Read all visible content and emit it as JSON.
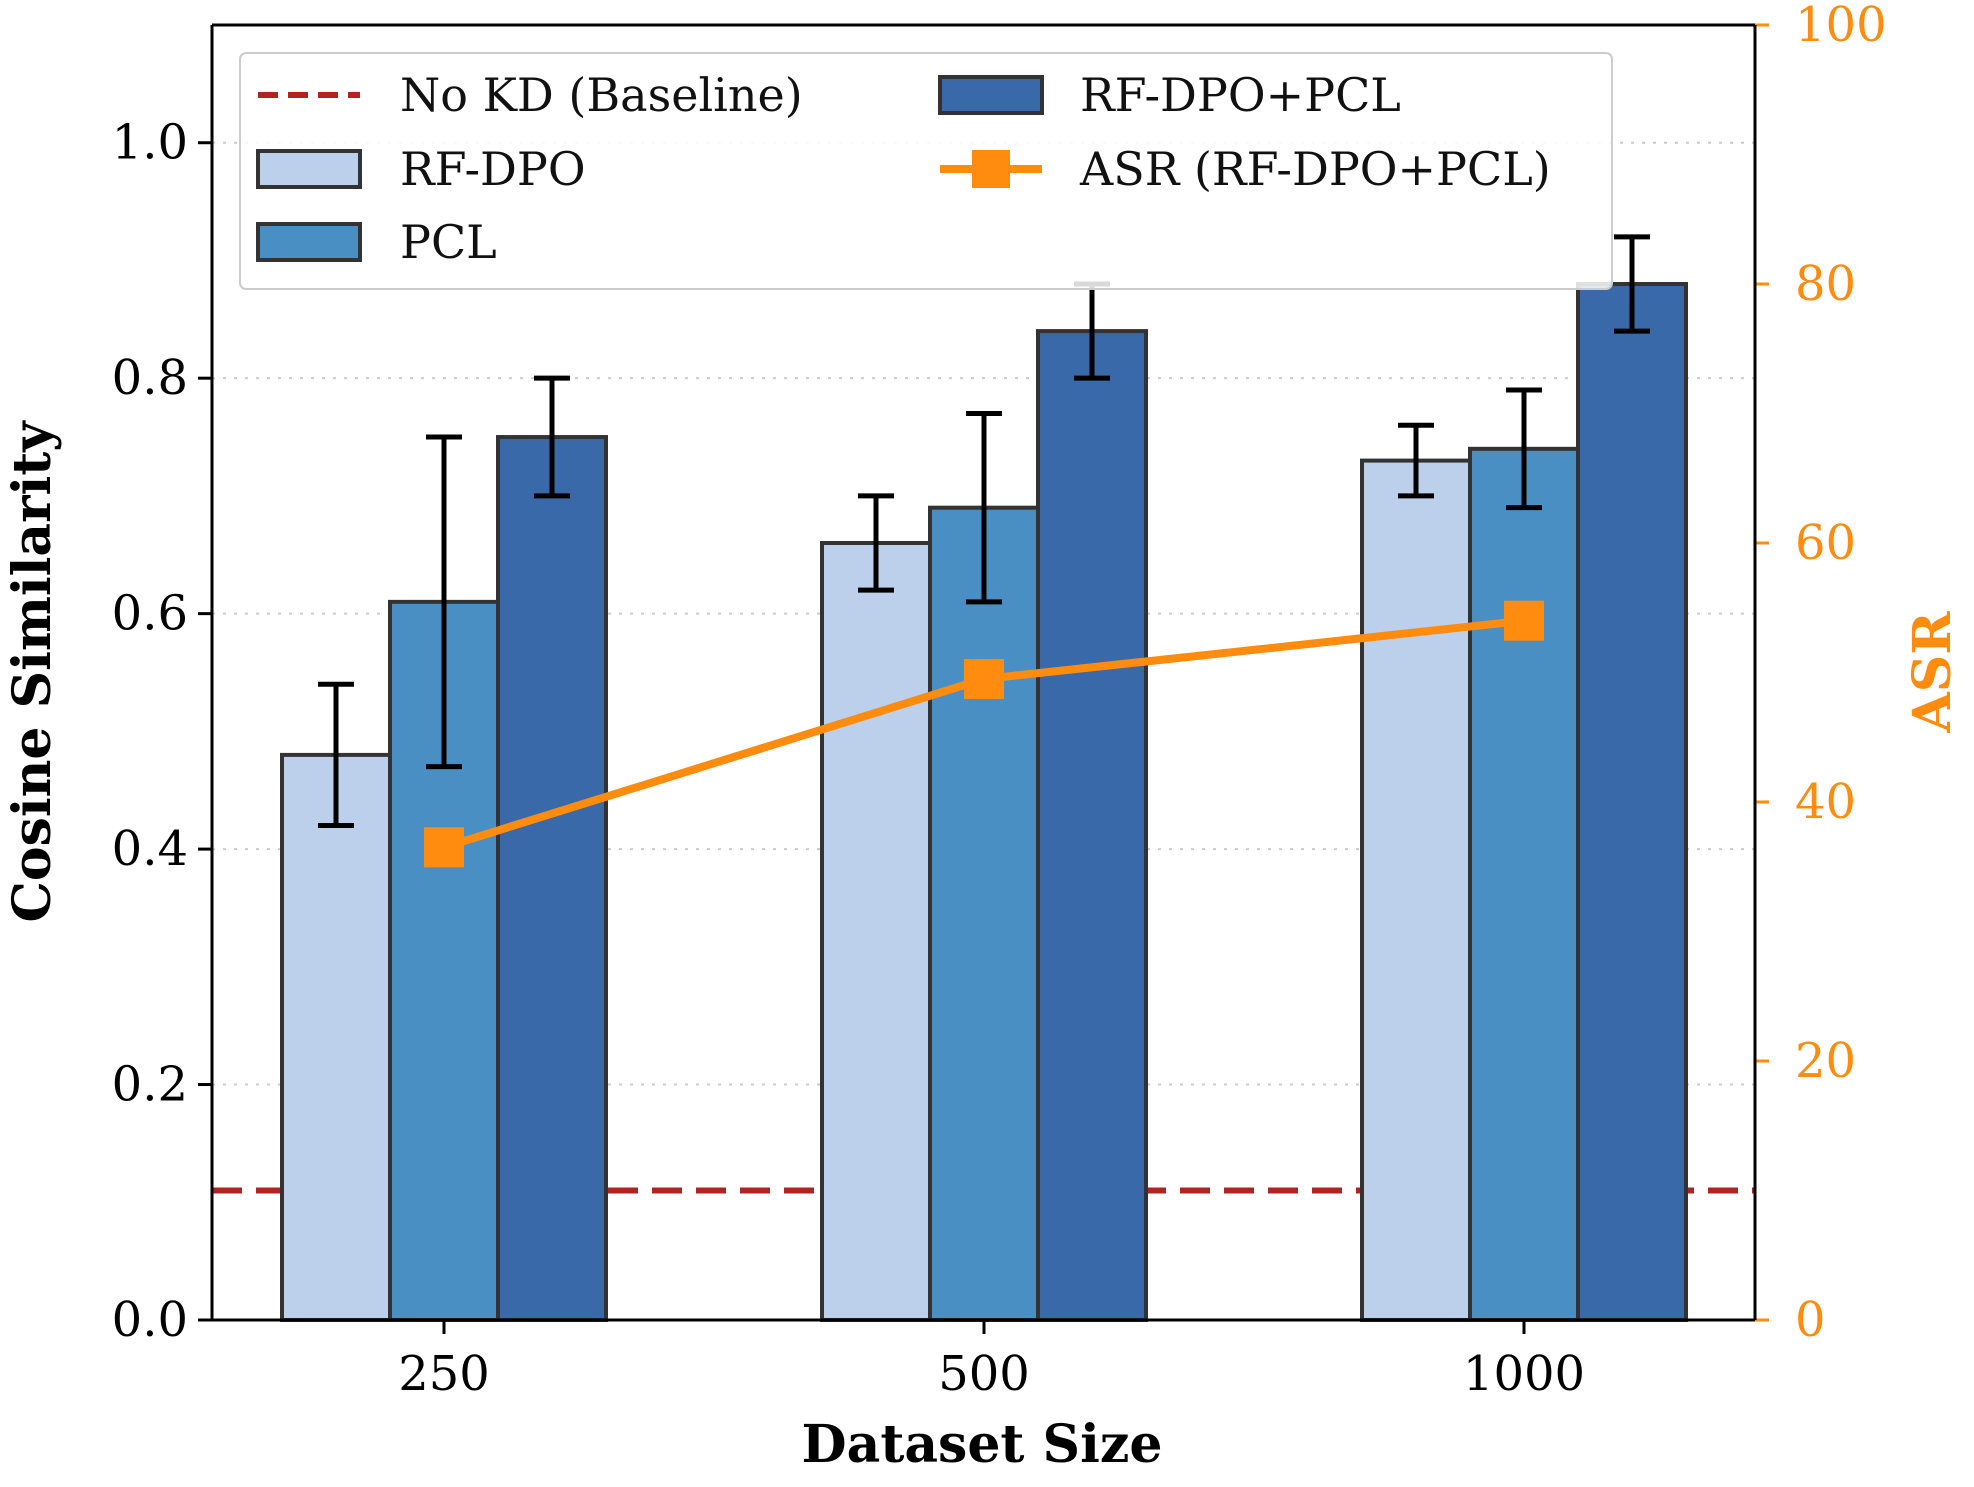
{
  "chart_data": {
    "type": "bar",
    "title": "",
    "xlabel": "Dataset Size",
    "ylabel": "Cosine Similarity",
    "y2label": "ASR",
    "categories": [
      "250",
      "500",
      "1000"
    ],
    "ylim": [
      0,
      1.1
    ],
    "y2lim": [
      0,
      100
    ],
    "yticks": [
      "0.0",
      "0.2",
      "0.4",
      "0.6",
      "0.8",
      "1.0"
    ],
    "y2ticks": [
      "0",
      "20",
      "40",
      "60",
      "80",
      "100"
    ],
    "grid": "horizontal dotted",
    "legend_position": "top",
    "series": [
      {
        "name": "RF-DPO",
        "color": "#bdd0eb",
        "values": [
          0.48,
          0.66,
          0.73
        ],
        "errors": [
          0.06,
          0.04,
          0.03
        ]
      },
      {
        "name": "PCL",
        "color": "#4a8fc4",
        "values": [
          0.61,
          0.69,
          0.74
        ],
        "errors": [
          0.14,
          0.08,
          0.05
        ]
      },
      {
        "name": "RF-DPO+PCL",
        "color": "#3969a8",
        "values": [
          0.75,
          0.84,
          0.88
        ],
        "errors": [
          0.05,
          0.04,
          0.04
        ]
      }
    ],
    "line_series": {
      "name": "ASR (RF-DPO+PCL)",
      "color": "#ff8c0f",
      "axis": "right",
      "values": [
        36.5,
        49.5,
        54
      ]
    },
    "reference_line": {
      "name": "No KD (Baseline)",
      "color": "#b22222",
      "value": 0.11
    }
  }
}
